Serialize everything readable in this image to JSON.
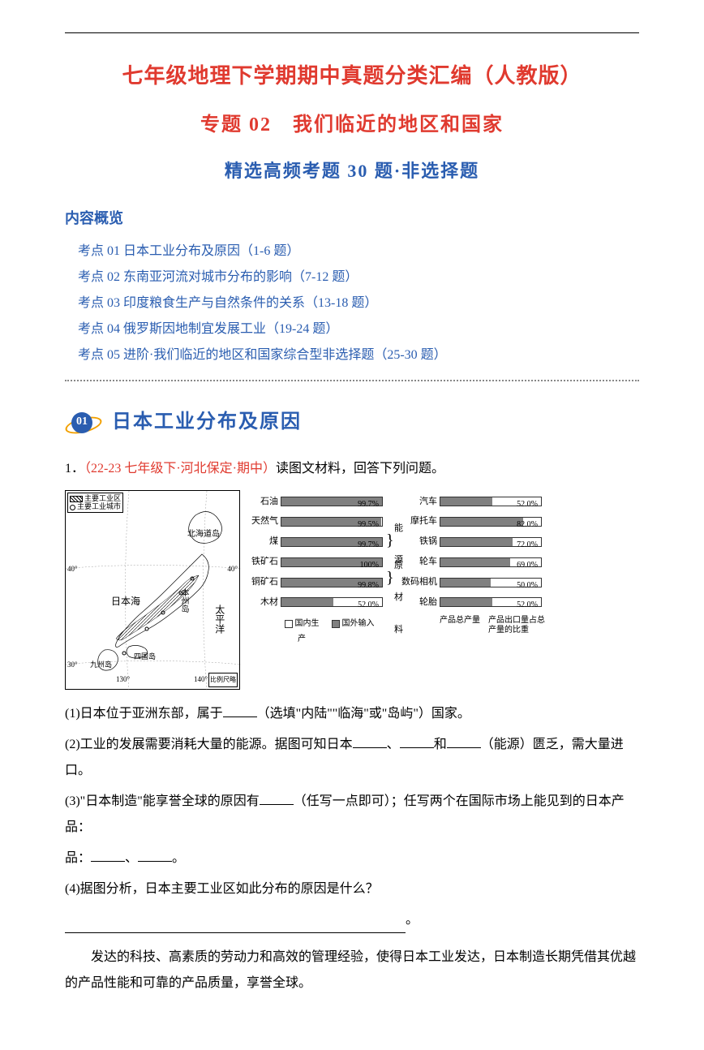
{
  "title_main": "七年级地理下学期期中真题分类汇编（人教版）",
  "title_sub": "专题 02　我们临近的地区和国家",
  "title_sel": "精选高频考题 30 题·非选择题",
  "toc_head": "内容概览",
  "toc": [
    "考点 01 日本工业分布及原因（1-6 题）",
    "考点 02 东南亚河流对城市分布的影响（7-12 题）",
    "考点 03 印度粮食生产与自然条件的关系（13-18 题）",
    "考点 04 俄罗斯因地制宜发展工业（19-24 题）",
    "考点 05 进阶·我们临近的地区和国家综合型非选择题（25-30 题）"
  ],
  "sec01": {
    "num": "01",
    "title": "日本工业分布及原因"
  },
  "q1": {
    "num": "1．",
    "src": "（22-23 七年级下·河北保定·期中）",
    "tail": "读图文材料，回答下列问题。",
    "p1a": "(1)日本位于亚洲东部，属于",
    "p1b": "（选填\"内陆\"\"临海\"或\"岛屿\"）国家。",
    "p2a": "(2)工业的发展需要消耗大量的能源。据图可知日本",
    "p2b": "、",
    "p2c": "和",
    "p2d": "（能源）匮乏，需大量进口。",
    "p3a": "(3)\"日本制造\"能享誉全球的原因有",
    "p3b": "（任写一点即可）；任写两个在国际市场上能见到的日本产品：",
    "p3c": "、",
    "p3d": "。",
    "p4": "(4)据图分析，日本主要工业区如此分布的原因是什么？",
    "p4end": "。",
    "note": "发达的科技、高素质的劳动力和高效的管理经验，使得日本工业发达，日本制造长期凭借其优越的产品性能和可靠的产品质量，享誉全球。"
  },
  "map": {
    "legend1": "主要工业区",
    "legend2": "主要工业城市",
    "labels": {
      "hokkaido": "北海道岛",
      "riben_hai": "日本海",
      "honshu": "本州岛",
      "taiping": "太平洋",
      "shikoku": "四国岛",
      "kyushu": "九州岛",
      "lat40": "40°",
      "lat30": "30°",
      "lon130": "130°",
      "lon140": "140°",
      "scale": "比例尺略"
    }
  },
  "chart1": {
    "rows": [
      {
        "label": "石油",
        "val": "99.7%",
        "pct": 99.7
      },
      {
        "label": "天然气",
        "val": "99.5%",
        "pct": 99.5
      },
      {
        "label": "煤",
        "val": "99.7%",
        "pct": 99.7
      },
      {
        "label": "铁矿石",
        "val": "100%",
        "pct": 100
      },
      {
        "label": "铜矿石",
        "val": "99.8%",
        "pct": 99.8
      },
      {
        "label": "木材",
        "val": "52.0%",
        "pct": 52.0
      }
    ],
    "group1": "能源",
    "group2": "原材料",
    "foot_left": "国内生产",
    "foot_right": "国外输入"
  },
  "chart2": {
    "rows": [
      {
        "label": "汽车",
        "val": "52.0%",
        "pct": 52.0
      },
      {
        "label": "摩托车",
        "val": "82.0%",
        "pct": 82.0
      },
      {
        "label": "铁锅",
        "val": "72.0%",
        "pct": 72.0
      },
      {
        "label": "轮车",
        "val": "69.0%",
        "pct": 69.0
      },
      {
        "label": "数码相机",
        "val": "50.0%",
        "pct": 50.0
      },
      {
        "label": "轮胎",
        "val": "52.0%",
        "pct": 52.0
      }
    ],
    "foot_left": "产品总产量",
    "foot_right": "产品出口量占总产量的比重"
  }
}
